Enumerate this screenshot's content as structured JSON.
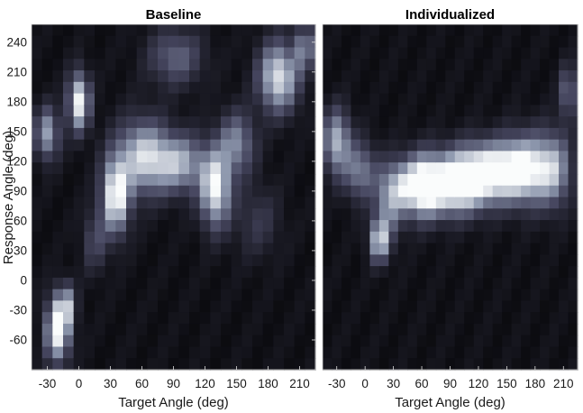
{
  "chart_data": [
    {
      "type": "heatmap",
      "title": "Baseline",
      "xlabel": "Target Angle (deg)",
      "ylabel": "Response Angle (deg)",
      "x_ticks": [
        -30,
        0,
        30,
        60,
        90,
        120,
        150,
        180,
        210
      ],
      "y_ticks": [
        -60,
        -30,
        0,
        30,
        60,
        90,
        120,
        150,
        180,
        210,
        240
      ],
      "xlim": [
        -45,
        225
      ],
      "ylim": [
        -90,
        258
      ],
      "colormap": "bone",
      "blobs": [
        {
          "x": -20,
          "y": -50,
          "sx": 8,
          "sy": 22,
          "a": 1.0
        },
        {
          "x": -12,
          "y": -25,
          "sx": 6,
          "sy": 15,
          "a": 0.55
        },
        {
          "x": 0,
          "y": 180,
          "sx": 7,
          "sy": 20,
          "a": 0.95
        },
        {
          "x": -30,
          "y": 148,
          "sx": 8,
          "sy": 18,
          "a": 0.65
        },
        {
          "x": 35,
          "y": 85,
          "sx": 9,
          "sy": 26,
          "a": 0.98
        },
        {
          "x": 60,
          "y": 125,
          "sx": 17,
          "sy": 26,
          "a": 0.75
        },
        {
          "x": 95,
          "y": 118,
          "sx": 18,
          "sy": 20,
          "a": 0.68
        },
        {
          "x": 130,
          "y": 92,
          "sx": 10,
          "sy": 26,
          "a": 0.92
        },
        {
          "x": 150,
          "y": 138,
          "sx": 12,
          "sy": 22,
          "a": 0.55
        },
        {
          "x": 190,
          "y": 205,
          "sx": 13,
          "sy": 24,
          "a": 0.88
        },
        {
          "x": 215,
          "y": 235,
          "sx": 6,
          "sy": 16,
          "a": 0.55
        },
        {
          "x": 92,
          "y": 225,
          "sx": 18,
          "sy": 20,
          "a": 0.42
        },
        {
          "x": 15,
          "y": 40,
          "sx": 8,
          "sy": 22,
          "a": 0.3
        },
        {
          "x": 170,
          "y": 60,
          "sx": 15,
          "sy": 25,
          "a": 0.22
        }
      ]
    },
    {
      "type": "heatmap",
      "title": "Individualized",
      "xlabel": "Target Angle (deg)",
      "ylabel": "",
      "x_ticks": [
        -30,
        0,
        30,
        60,
        90,
        120,
        150,
        180,
        210
      ],
      "y_ticks": [],
      "xlim": [
        -45,
        225
      ],
      "ylim": [
        -90,
        258
      ],
      "colormap": "bone",
      "blobs": [
        {
          "x": 90,
          "y": 95,
          "sx": 26,
          "sy": 20,
          "a": 1.0
        },
        {
          "x": 130,
          "y": 110,
          "sx": 28,
          "sy": 20,
          "a": 0.95
        },
        {
          "x": 60,
          "y": 95,
          "sx": 12,
          "sy": 22,
          "a": 0.72
        },
        {
          "x": 170,
          "y": 112,
          "sx": 18,
          "sy": 24,
          "a": 0.75
        },
        {
          "x": 200,
          "y": 112,
          "sx": 13,
          "sy": 26,
          "a": 0.6
        },
        {
          "x": -30,
          "y": 140,
          "sx": 10,
          "sy": 22,
          "a": 0.72
        },
        {
          "x": -5,
          "y": 110,
          "sx": 12,
          "sy": 20,
          "a": 0.52
        },
        {
          "x": 15,
          "y": 40,
          "sx": 7,
          "sy": 15,
          "a": 0.8
        },
        {
          "x": 25,
          "y": 80,
          "sx": 10,
          "sy": 25,
          "a": 0.55
        },
        {
          "x": 215,
          "y": 190,
          "sx": 6,
          "sy": 18,
          "a": 0.5
        },
        {
          "x": 40,
          "y": 95,
          "sx": 10,
          "sy": 18,
          "a": 0.45
        }
      ]
    }
  ]
}
